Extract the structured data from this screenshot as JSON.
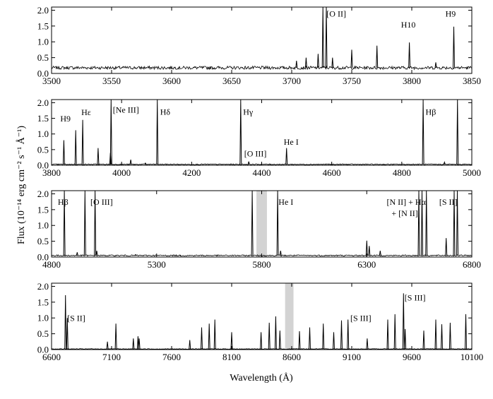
{
  "figure": {
    "ylabel": "Flux (10⁻¹⁴ erg cm⁻² s⁻¹ Å⁻¹)",
    "xlabel": "Wavelength (Å)"
  },
  "chart_data": [
    {
      "type": "line",
      "xlim": [
        3500,
        3850
      ],
      "ylim": [
        0,
        2.1
      ],
      "xticks": [
        3500,
        3550,
        3600,
        3650,
        3700,
        3750,
        3800,
        3850
      ],
      "yticks": [
        0.0,
        0.5,
        1.0,
        1.5,
        2.0
      ],
      "ytick_labels": [
        "0.0",
        "0.5",
        "1.0",
        "1.5",
        "2.0"
      ],
      "continuum": 0.18,
      "noise": 0.05,
      "shaded": [],
      "lines": [
        {
          "x": 3704,
          "y": 0.4
        },
        {
          "x": 3712,
          "y": 0.5
        },
        {
          "x": 3722,
          "y": 0.62
        },
        {
          "x": 3726.0,
          "y": 2.1
        },
        {
          "x": 3728.8,
          "y": 2.1
        },
        {
          "x": 3734,
          "y": 0.5
        },
        {
          "x": 3750,
          "y": 0.75
        },
        {
          "x": 3771,
          "y": 0.88
        },
        {
          "x": 3798,
          "y": 0.98
        },
        {
          "x": 3820,
          "y": 0.35
        },
        {
          "x": 3835,
          "y": 1.48
        }
      ],
      "annotations": [
        {
          "text": "[O II]",
          "x": 3729,
          "y": 1.8
        },
        {
          "text": "H10",
          "x": 3791,
          "y": 1.45
        },
        {
          "text": "H9",
          "x": 3828,
          "y": 1.8
        }
      ]
    },
    {
      "type": "line",
      "xlim": [
        3800,
        5000
      ],
      "ylim": [
        0,
        2.1
      ],
      "xticks": [
        3800,
        4000,
        4200,
        4400,
        4600,
        4800,
        5000
      ],
      "yticks": [
        0.0,
        0.5,
        1.0,
        1.5,
        2.0
      ],
      "ytick_labels": [
        "0.0",
        "0.5",
        "1.0",
        "1.5",
        "2.0"
      ],
      "continuum": 0.03,
      "noise": 0.015,
      "shaded": [],
      "lines": [
        {
          "x": 3835,
          "y": 0.8
        },
        {
          "x": 3869,
          "y": 1.12
        },
        {
          "x": 3889,
          "y": 1.45
        },
        {
          "x": 3933,
          "y": 0.55
        },
        {
          "x": 3968,
          "y": 0.4
        },
        {
          "x": 3970,
          "y": 2.1
        },
        {
          "x": 4026,
          "y": 0.18
        },
        {
          "x": 4068,
          "y": 0.07
        },
        {
          "x": 4102,
          "y": 2.1
        },
        {
          "x": 4340,
          "y": 2.1
        },
        {
          "x": 4363,
          "y": 0.12
        },
        {
          "x": 4471,
          "y": 0.55
        },
        {
          "x": 4861,
          "y": 2.1
        },
        {
          "x": 4922,
          "y": 0.1
        },
        {
          "x": 4959,
          "y": 2.1
        }
      ],
      "annotations": [
        {
          "text": "H9",
          "x": 3825,
          "y": 1.4
        },
        {
          "text": "Hε",
          "x": 3885,
          "y": 1.6
        },
        {
          "text": "[Ne III]",
          "x": 3975,
          "y": 1.68
        },
        {
          "text": "Hδ",
          "x": 4110,
          "y": 1.62
        },
        {
          "text": "Hγ",
          "x": 4347,
          "y": 1.62
        },
        {
          "text": "[O III]",
          "x": 4350,
          "y": 0.28
        },
        {
          "text": "He I",
          "x": 4463,
          "y": 0.65
        },
        {
          "text": "Hβ",
          "x": 4868,
          "y": 1.62
        }
      ]
    },
    {
      "type": "line",
      "xlim": [
        4800,
        6800
      ],
      "ylim": [
        0,
        2.1
      ],
      "xticks": [
        4800,
        5300,
        5800,
        6300,
        6800
      ],
      "yticks": [
        0.0,
        0.5,
        1.0,
        1.5,
        2.0
      ],
      "ytick_labels": [
        "0.0",
        "0.5",
        "1.0",
        "1.5",
        "2.0"
      ],
      "continuum": 0.05,
      "noise": 0.02,
      "shaded": [
        [
          5775,
          5825
        ]
      ],
      "lines": [
        {
          "x": 4861,
          "y": 2.1
        },
        {
          "x": 4922,
          "y": 0.15
        },
        {
          "x": 4959,
          "y": 2.1
        },
        {
          "x": 5007,
          "y": 2.1
        },
        {
          "x": 5015,
          "y": 0.2
        },
        {
          "x": 5200,
          "y": 0.08
        },
        {
          "x": 5412,
          "y": 0.06
        },
        {
          "x": 5755,
          "y": 2.1
        },
        {
          "x": 5876,
          "y": 2.1
        },
        {
          "x": 5890,
          "y": 0.2
        },
        {
          "x": 6300,
          "y": 0.52
        },
        {
          "x": 6312,
          "y": 0.35
        },
        {
          "x": 6364,
          "y": 0.2
        },
        {
          "x": 6548,
          "y": 2.1
        },
        {
          "x": 6563,
          "y": 2.1
        },
        {
          "x": 6584,
          "y": 2.1
        },
        {
          "x": 6678,
          "y": 0.6
        },
        {
          "x": 6716,
          "y": 2.1
        },
        {
          "x": 6731,
          "y": 2.1
        }
      ],
      "annotations": [
        {
          "text": "Hβ",
          "x": 4830,
          "y": 1.65
        },
        {
          "text": "[O III]",
          "x": 4985,
          "y": 1.65
        },
        {
          "text": "He I",
          "x": 5880,
          "y": 1.65
        },
        {
          "text": "[N II] + Hα",
          "x": 6395,
          "y": 1.65
        },
        {
          "text": "+ [N II]",
          "x": 6418,
          "y": 1.3
        },
        {
          "text": "[S II]",
          "x": 6645,
          "y": 1.65
        }
      ]
    },
    {
      "type": "line",
      "xlim": [
        6600,
        10100
      ],
      "ylim": [
        0,
        2.1
      ],
      "xticks": [
        6600,
        7100,
        7600,
        8100,
        8600,
        9100,
        9600,
        10100
      ],
      "yticks": [
        0.0,
        0.5,
        1.0,
        1.5,
        2.0
      ],
      "ytick_labels": [
        "0.0",
        "0.5",
        "1.0",
        "1.5",
        "2.0"
      ],
      "continuum": 0.02,
      "noise": 0.01,
      "shaded": [
        [
          8545,
          8615
        ]
      ],
      "lines": [
        {
          "x": 6716,
          "y": 1.72
        },
        {
          "x": 6731,
          "y": 1.0
        },
        {
          "x": 7065,
          "y": 0.25
        },
        {
          "x": 7136,
          "y": 0.82
        },
        {
          "x": 7281,
          "y": 0.35
        },
        {
          "x": 7320,
          "y": 0.42
        },
        {
          "x": 7330,
          "y": 0.35
        },
        {
          "x": 7751,
          "y": 0.3
        },
        {
          "x": 7850,
          "y": 0.7
        },
        {
          "x": 7913,
          "y": 0.82
        },
        {
          "x": 7960,
          "y": 0.95
        },
        {
          "x": 8100,
          "y": 0.55
        },
        {
          "x": 8345,
          "y": 0.55
        },
        {
          "x": 8413,
          "y": 0.85
        },
        {
          "x": 8467,
          "y": 1.05
        },
        {
          "x": 8502,
          "y": 0.6
        },
        {
          "x": 8665,
          "y": 0.58
        },
        {
          "x": 8750,
          "y": 0.7
        },
        {
          "x": 8863,
          "y": 0.82
        },
        {
          "x": 8950,
          "y": 0.55
        },
        {
          "x": 9015,
          "y": 0.92
        },
        {
          "x": 9069,
          "y": 0.95
        },
        {
          "x": 9229,
          "y": 0.35
        },
        {
          "x": 9400,
          "y": 0.95
        },
        {
          "x": 9460,
          "y": 1.12
        },
        {
          "x": 9531,
          "y": 1.78
        },
        {
          "x": 9545,
          "y": 0.65
        },
        {
          "x": 9700,
          "y": 0.6
        },
        {
          "x": 9800,
          "y": 0.95
        },
        {
          "x": 9850,
          "y": 0.8
        },
        {
          "x": 9920,
          "y": 0.85
        },
        {
          "x": 10050,
          "y": 1.12
        }
      ],
      "annotations": [
        {
          "text": "[S II]",
          "x": 6730,
          "y": 0.9
        },
        {
          "text": "[S III]",
          "x": 9088,
          "y": 0.9
        },
        {
          "text": "[S III]",
          "x": 9540,
          "y": 1.55
        }
      ]
    }
  ]
}
